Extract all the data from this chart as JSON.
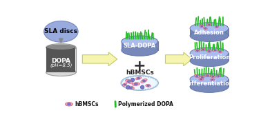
{
  "bg_color": "#ffffff",
  "disc_color": "#8899cc",
  "disc_edge": "#6677aa",
  "disc_top_color": "#aabbee",
  "disc_side_color": "#7788bb",
  "sla_label": "SLA discs",
  "dopa_label": "DOPA",
  "dopa_sublabel": "(pH=8.5)",
  "sla_dopa_label": "SLA-DOPA",
  "hbmscs_label": "hBMSCs",
  "outcomes": [
    "Adhesion",
    "Proliferation",
    "Differentiation"
  ],
  "plus_symbol": "+",
  "arrow_fill": "#f5f5b0",
  "arrow_edge": "#c8c860",
  "container_fill": "#f0f0f0",
  "container_edge": "#999999",
  "dopa_solution_color": "#555555",
  "dopa_text_color": "#000000",
  "petri_fill": "#eef8ff",
  "petri_edge": "#99bbdd",
  "grass_color": "#22bb22",
  "cell_body_color": "#f4a0b0",
  "cell_body_edge": "#cc6688",
  "nucleus_color": "#7777cc",
  "nucleus_edge": "#5555aa",
  "outcome_text_color": "#000000",
  "sla_oval_color": "#99aadd",
  "sla_oval_edge": "#7788bb",
  "sla_text_color": "#000000",
  "legend_hbmscs": "hBMSCs",
  "legend_dopa": "Polymerized DOPA",
  "down_arrow_color": "#888888"
}
